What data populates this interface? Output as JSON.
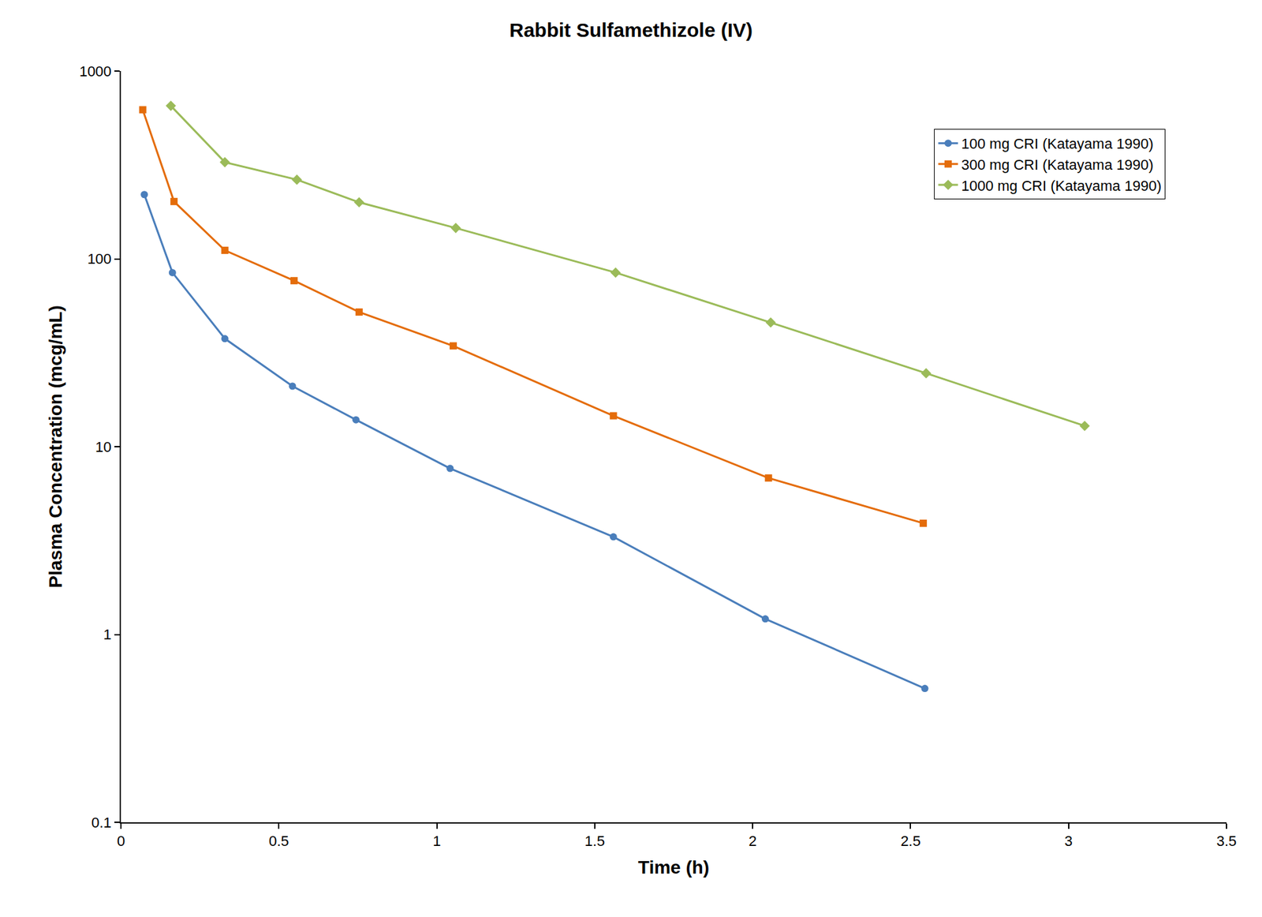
{
  "chart_data": {
    "type": "line",
    "title": "Rabbit Sulfamethizole (IV)",
    "x_label": "Time (h)",
    "y_label": "Plasma Concentration (mcg/mL)",
    "log": "y",
    "grid": false,
    "legend": "top right",
    "xlim": [
      0,
      3.5
    ],
    "xticks": [
      0,
      0.5,
      1,
      1.5,
      2,
      2.5,
      3,
      3.5
    ],
    "ylim": [
      0.1,
      1000
    ],
    "yticks": [
      0.1,
      1,
      10,
      100,
      1000
    ],
    "series": [
      {
        "name": "100 mg CRI (Katayama 1990)",
        "color": "#4a7ebb",
        "marker": "circle",
        "line_style": "solid",
        "x": [
          0.074,
          0.163,
          0.329,
          0.543,
          0.744,
          1.042,
          1.559,
          2.04,
          2.545
        ],
        "values": [
          220,
          84.5,
          37.6,
          21.0,
          13.9,
          7.66,
          3.31,
          1.21,
          0.516
        ]
      },
      {
        "name": "300 mg CRI (Katayama 1990)",
        "color": "#e46c0a",
        "marker": "square",
        "line_style": "solid",
        "x": [
          0.069,
          0.168,
          0.329,
          0.548,
          0.754,
          1.052,
          1.559,
          2.05,
          2.54
        ],
        "values": [
          622,
          202,
          111,
          76.5,
          52.1,
          34.4,
          14.6,
          6.81,
          3.91
        ]
      },
      {
        "name": "1000 mg CRI (Katayama 1990)",
        "color": "#9bbb59",
        "marker": "diamond",
        "line_style": "solid",
        "x": [
          0.158,
          0.329,
          0.557,
          0.754,
          1.06,
          1.566,
          2.057,
          2.549,
          3.051
        ],
        "values": [
          653,
          327,
          264,
          200,
          146,
          84.5,
          45.8,
          24.6,
          12.9
        ]
      }
    ]
  }
}
